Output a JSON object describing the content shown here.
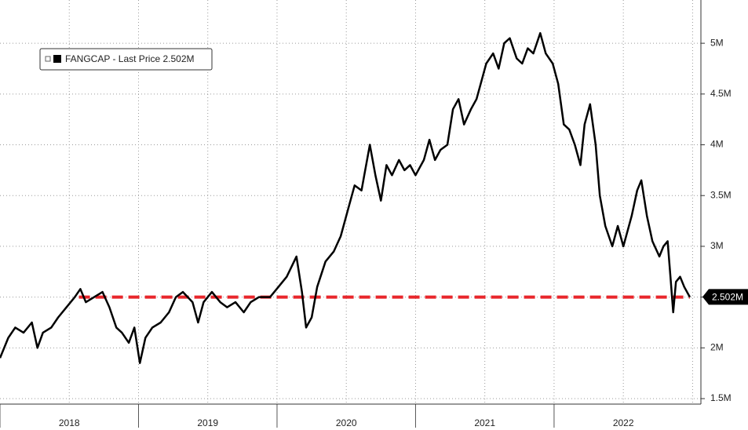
{
  "chart_data": {
    "type": "line",
    "x": [
      2018.0,
      2018.06,
      2018.11,
      2018.17,
      2018.23,
      2018.27,
      2018.31,
      2018.37,
      2018.42,
      2018.48,
      2018.54,
      2018.58,
      2018.62,
      2018.68,
      2018.74,
      2018.79,
      2018.84,
      2018.88,
      2018.93,
      2018.97,
      2019.01,
      2019.05,
      2019.1,
      2019.16,
      2019.22,
      2019.27,
      2019.32,
      2019.39,
      2019.43,
      2019.47,
      2019.53,
      2019.59,
      2019.64,
      2019.7,
      2019.76,
      2019.81,
      2019.87,
      2019.95,
      2020.01,
      2020.07,
      2020.14,
      2020.18,
      2020.21,
      2020.25,
      2020.29,
      2020.35,
      2020.41,
      2020.46,
      2020.52,
      2020.56,
      2020.61,
      2020.63,
      2020.67,
      2020.71,
      2020.75,
      2020.79,
      2020.83,
      2020.88,
      2020.92,
      2020.96,
      2021.0,
      2021.06,
      2021.1,
      2021.14,
      2021.18,
      2021.23,
      2021.27,
      2021.31,
      2021.35,
      2021.4,
      2021.44,
      2021.48,
      2021.51,
      2021.56,
      2021.6,
      2021.64,
      2021.68,
      2021.73,
      2021.77,
      2021.81,
      2021.85,
      2021.9,
      2021.94,
      2021.99,
      2022.03,
      2022.07,
      2022.11,
      2022.15,
      2022.19,
      2022.22,
      2022.26,
      2022.3,
      2022.33,
      2022.37,
      2022.42,
      2022.46,
      2022.5,
      2022.56,
      2022.6,
      2022.63,
      2022.67,
      2022.71,
      2022.76,
      2022.79,
      2022.82,
      2022.84,
      2022.86,
      2022.88,
      2022.91,
      2022.94,
      2022.98
    ],
    "series": [
      {
        "name": "FANGCAP - Last Price 2.502M",
        "color": "#000000",
        "values": [
          1.9,
          2.1,
          2.2,
          2.15,
          2.25,
          2.0,
          2.15,
          2.2,
          2.3,
          2.4,
          2.5,
          2.58,
          2.45,
          2.5,
          2.55,
          2.4,
          2.2,
          2.15,
          2.05,
          2.2,
          1.85,
          2.1,
          2.2,
          2.25,
          2.35,
          2.5,
          2.55,
          2.45,
          2.25,
          2.45,
          2.55,
          2.45,
          2.4,
          2.45,
          2.35,
          2.45,
          2.5,
          2.5,
          2.6,
          2.7,
          2.9,
          2.55,
          2.2,
          2.3,
          2.6,
          2.85,
          2.95,
          3.1,
          3.4,
          3.6,
          3.55,
          3.7,
          4.0,
          3.7,
          3.45,
          3.8,
          3.7,
          3.85,
          3.75,
          3.8,
          3.7,
          3.85,
          4.05,
          3.85,
          3.95,
          4.0,
          4.35,
          4.45,
          4.2,
          4.35,
          4.45,
          4.65,
          4.8,
          4.9,
          4.75,
          5.0,
          5.05,
          4.85,
          4.8,
          4.95,
          4.9,
          5.1,
          4.9,
          4.8,
          4.6,
          4.2,
          4.15,
          4.0,
          3.8,
          4.2,
          4.4,
          4.0,
          3.5,
          3.2,
          3.0,
          3.2,
          3.0,
          3.3,
          3.55,
          3.65,
          3.3,
          3.05,
          2.9,
          3.0,
          3.05,
          2.7,
          2.35,
          2.65,
          2.7,
          2.6,
          2.5
        ]
      }
    ],
    "last_value": 2.502,
    "last_label": "2.502M",
    "reference_line": {
      "y": 2.5,
      "x_start": 2018.57,
      "x_end": 2022.98,
      "color": "#e8262b"
    },
    "xlim": [
      2018,
      2023.06
    ],
    "xticks": [
      {
        "value": 2018.5,
        "label": "2018"
      },
      {
        "value": 2019.5,
        "label": "2019"
      },
      {
        "value": 2020.5,
        "label": "2020"
      },
      {
        "value": 2021.5,
        "label": "2021"
      },
      {
        "value": 2022.5,
        "label": "2022"
      }
    ],
    "ylim": [
      1.446,
      5.426
    ],
    "yticks": [
      {
        "value": 1.5,
        "label": "1.5M"
      },
      {
        "value": 2,
        "label": "2M"
      },
      {
        "value": 2.5,
        "label": "2.5M"
      },
      {
        "value": 3,
        "label": "3M"
      },
      {
        "value": 3.5,
        "label": "3.5M"
      },
      {
        "value": 4,
        "label": "4M"
      },
      {
        "value": 4.5,
        "label": "4.5M"
      },
      {
        "value": 5,
        "label": "5M"
      }
    ],
    "grid": true
  }
}
